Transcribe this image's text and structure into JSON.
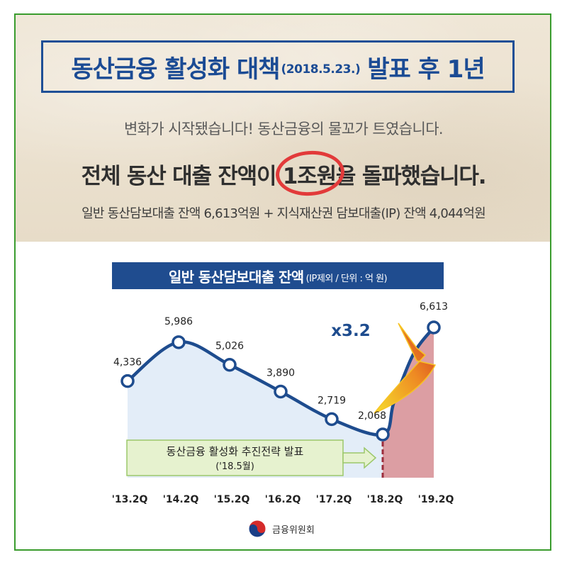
{
  "header": {
    "title_main": "동산금융 활성화 대책",
    "title_date": "(2018.5.23.)",
    "title_suffix": "발표 후 1년",
    "subtitle": "변화가 시작됐습니다! 동산금융의 물꼬가 트였습니다.",
    "headline_before": "전체 동산 대출 잔액이 ",
    "headline_emphasis": "1조원",
    "headline_after": "을 돌파했습니다.",
    "detail": "일반 동산담보대출 잔액 6,613억원 + 지식재산권 담보대출(IP) 잔액 4,044억원"
  },
  "chart_title": {
    "main": "일반 동산담보대출 잔액",
    "unit": "(IP제외 / 단위 : 억 원)"
  },
  "chart_data": {
    "type": "area",
    "categories": [
      "'13.2Q",
      "'14.2Q",
      "'15.2Q",
      "'16.2Q",
      "'17.2Q",
      "'18.2Q",
      "'19.2Q"
    ],
    "values": [
      4336,
      5986,
      5026,
      3890,
      2719,
      2068,
      6613
    ],
    "value_labels": [
      "4,336",
      "5,986",
      "5,026",
      "3,890",
      "2,719",
      "2,068",
      "6,613"
    ],
    "ylim": [
      0,
      7000
    ],
    "grid": false,
    "growth_label": "x3.2",
    "annotation": {
      "line1": "동산금융 활성화 추진전략 발표",
      "line2": "('18.5월)"
    },
    "colors": {
      "line": "#1e4c8e",
      "area_before": "#e3edf8",
      "area_after": "#dc9ea3",
      "marker_divider": "#9c2d3c",
      "growth_label": "#1e4c8e",
      "arrow_light": "#f5dd2c",
      "arrow_dark": "#cf3220",
      "annotation_fill": "#e6f2cf",
      "annotation_border": "#9cc86a"
    }
  },
  "footer": {
    "org_name": "금융위원회"
  }
}
